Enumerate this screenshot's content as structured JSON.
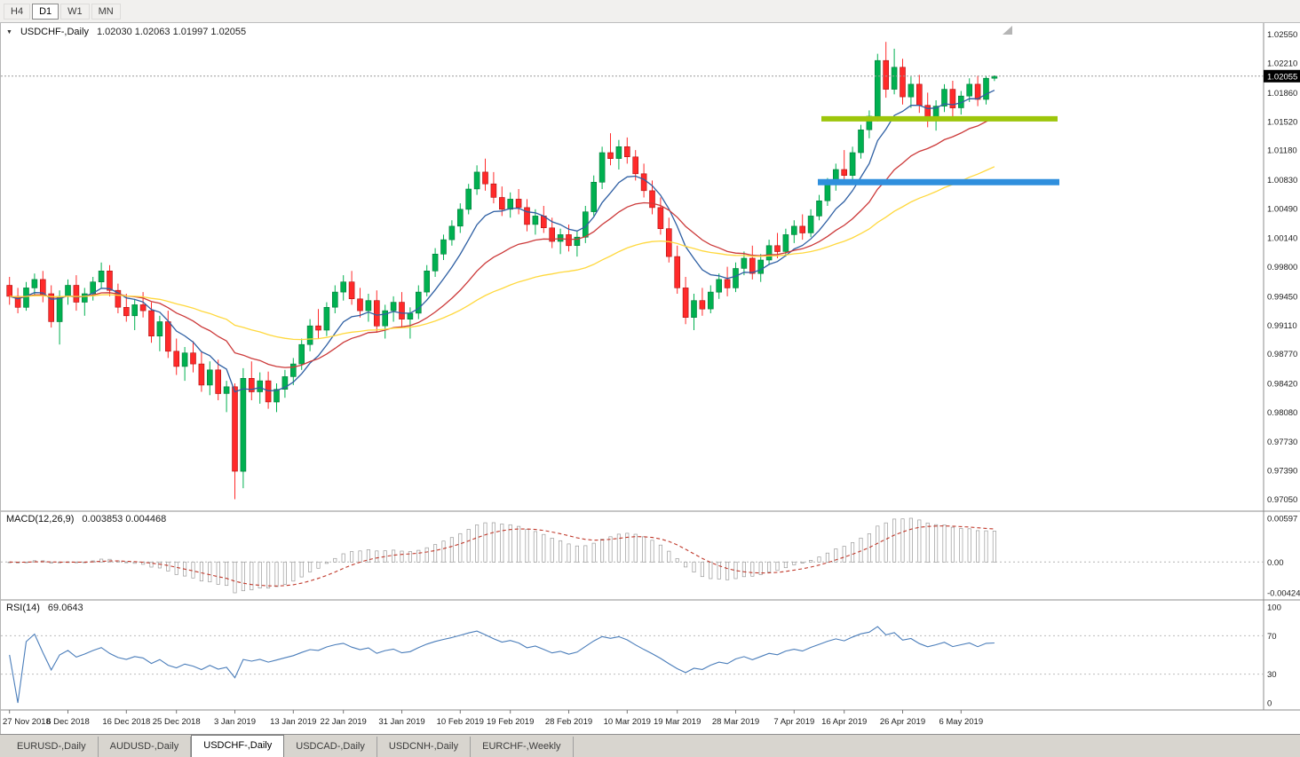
{
  "toolbar": {
    "timeframes": [
      {
        "label": "H4",
        "active": false
      },
      {
        "label": "D1",
        "active": true
      },
      {
        "label": "W1",
        "active": false
      },
      {
        "label": "MN",
        "active": false
      }
    ]
  },
  "icons": {
    "collapse": "▼"
  },
  "chart_data": {
    "type": "candlestick",
    "symbol_title": "USDCHF-,Daily",
    "ohlc_text": "1.02030 1.02063 1.01997 1.02055",
    "last_price": 1.02055,
    "last_price_label": "1.02055",
    "y_min": 0.9695,
    "y_max": 1.0262,
    "up_color": "#00b050",
    "up_border": "#007a38",
    "down_color": "#ff2a2a",
    "down_border": "#ad0f0f",
    "price_axis_ticks": [
      "1.02550",
      "1.02210",
      "1.01860",
      "1.01520",
      "1.01180",
      "1.00830",
      "1.00490",
      "1.00140",
      "0.99800",
      "0.99450",
      "0.99110",
      "0.98770",
      "0.98420",
      "0.98080",
      "0.97730",
      "0.97390",
      "0.97050"
    ],
    "moving_averages": [
      {
        "period": 8,
        "type": "ema",
        "color": "#2e5fa3"
      },
      {
        "period": 21,
        "type": "ema",
        "color": "#cc3939"
      },
      {
        "period": 50,
        "type": "ema",
        "color": "#ffd83d"
      }
    ],
    "trendlines": [
      {
        "name": "resistance-line",
        "price": 1.0155,
        "color": "#9dc60b",
        "x1": 0.65,
        "x2": 0.837,
        "thickness": 6
      },
      {
        "name": "support-line",
        "price": 1.008,
        "color": "#2f8fdd",
        "x1": 0.647,
        "x2": 0.838,
        "thickness": 7
      }
    ],
    "macd": {
      "label": "MACD(12,26,9)",
      "values_text": "0.003853 0.004468",
      "fast": 12,
      "slow": 26,
      "signal": 9,
      "axis_ticks": [
        "0.00597",
        "0.00",
        "-0.004243"
      ],
      "signal_color": "#c0392b",
      "hist_stroke": "#9a9a9a"
    },
    "rsi": {
      "label": "RSI(14)",
      "value_text": "69.0643",
      "period": 14,
      "levels": [
        70,
        30
      ],
      "axis_ticks": [
        "100",
        "70",
        "30",
        "0"
      ],
      "color": "#4a7dba"
    },
    "date_labels": [
      {
        "text": "27 Nov 2018",
        "i": 0
      },
      {
        "text": "6 Dec 2018",
        "i": 7
      },
      {
        "text": "16 Dec 2018",
        "i": 14
      },
      {
        "text": "25 Dec 2018",
        "i": 20
      },
      {
        "text": "3 Jan 2019",
        "i": 27
      },
      {
        "text": "13 Jan 2019",
        "i": 34
      },
      {
        "text": "22 Jan 2019",
        "i": 40
      },
      {
        "text": "31 Jan 2019",
        "i": 47
      },
      {
        "text": "10 Feb 2019",
        "i": 54
      },
      {
        "text": "19 Feb 2019",
        "i": 60
      },
      {
        "text": "28 Feb 2019",
        "i": 67
      },
      {
        "text": "10 Mar 2019",
        "i": 74
      },
      {
        "text": "19 Mar 2019",
        "i": 80
      },
      {
        "text": "28 Mar 2019",
        "i": 87
      },
      {
        "text": "7 Apr 2019",
        "i": 94
      },
      {
        "text": "16 Apr 2019",
        "i": 100
      },
      {
        "text": "26 Apr 2019",
        "i": 107
      },
      {
        "text": "6 May 2019",
        "i": 114
      }
    ],
    "candles_ohlc": [
      [
        0.9958,
        0.9968,
        0.9935,
        0.9945
      ],
      [
        0.9945,
        0.9955,
        0.9925,
        0.9932
      ],
      [
        0.9932,
        0.9962,
        0.9928,
        0.9955
      ],
      [
        0.9955,
        0.9972,
        0.9945,
        0.9965
      ],
      [
        0.9965,
        0.9975,
        0.9938,
        0.9948
      ],
      [
        0.9948,
        0.9958,
        0.9908,
        0.9915
      ],
      [
        0.9915,
        0.9952,
        0.9888,
        0.9945
      ],
      [
        0.9945,
        0.9965,
        0.9935,
        0.9958
      ],
      [
        0.9958,
        0.997,
        0.9928,
        0.9938
      ],
      [
        0.9938,
        0.9955,
        0.9922,
        0.9948
      ],
      [
        0.9948,
        0.9968,
        0.994,
        0.9962
      ],
      [
        0.9962,
        0.9985,
        0.9955,
        0.9975
      ],
      [
        0.9975,
        0.9982,
        0.9945,
        0.9952
      ],
      [
        0.9952,
        0.996,
        0.9925,
        0.9932
      ],
      [
        0.9932,
        0.9948,
        0.9915,
        0.9922
      ],
      [
        0.9922,
        0.9942,
        0.9905,
        0.9935
      ],
      [
        0.9935,
        0.995,
        0.992,
        0.9928
      ],
      [
        0.9928,
        0.9938,
        0.989,
        0.9898
      ],
      [
        0.9898,
        0.9922,
        0.988,
        0.9915
      ],
      [
        0.9915,
        0.9928,
        0.9872,
        0.988
      ],
      [
        0.988,
        0.9895,
        0.9852,
        0.9862
      ],
      [
        0.9862,
        0.9885,
        0.9845,
        0.9878
      ],
      [
        0.9878,
        0.9892,
        0.9855,
        0.9865
      ],
      [
        0.9865,
        0.988,
        0.9832,
        0.984
      ],
      [
        0.984,
        0.9868,
        0.9828,
        0.9858
      ],
      [
        0.9858,
        0.987,
        0.9822,
        0.983
      ],
      [
        0.983,
        0.9845,
        0.9808,
        0.9838
      ],
      [
        0.9838,
        0.9842,
        0.9705,
        0.9738
      ],
      [
        0.9738,
        0.986,
        0.9718,
        0.9848
      ],
      [
        0.9848,
        0.9868,
        0.9822,
        0.9832
      ],
      [
        0.9832,
        0.9855,
        0.9818,
        0.9845
      ],
      [
        0.9845,
        0.9856,
        0.9812,
        0.982
      ],
      [
        0.982,
        0.9842,
        0.9808,
        0.9835
      ],
      [
        0.9835,
        0.9858,
        0.9825,
        0.985
      ],
      [
        0.985,
        0.9872,
        0.984,
        0.9865
      ],
      [
        0.9865,
        0.9895,
        0.9858,
        0.9888
      ],
      [
        0.9888,
        0.9918,
        0.988,
        0.991
      ],
      [
        0.991,
        0.993,
        0.9895,
        0.9905
      ],
      [
        0.9905,
        0.9938,
        0.9898,
        0.9932
      ],
      [
        0.9932,
        0.9958,
        0.9925,
        0.995
      ],
      [
        0.995,
        0.997,
        0.994,
        0.9962
      ],
      [
        0.9962,
        0.9975,
        0.9935,
        0.9942
      ],
      [
        0.9942,
        0.9955,
        0.992,
        0.9928
      ],
      [
        0.9928,
        0.9948,
        0.9915,
        0.994
      ],
      [
        0.994,
        0.9952,
        0.9902,
        0.991
      ],
      [
        0.991,
        0.9935,
        0.9895,
        0.9928
      ],
      [
        0.9928,
        0.9945,
        0.9915,
        0.9938
      ],
      [
        0.9938,
        0.995,
        0.9908,
        0.9918
      ],
      [
        0.9918,
        0.9932,
        0.9895,
        0.9925
      ],
      [
        0.9925,
        0.9958,
        0.9918,
        0.995
      ],
      [
        0.995,
        0.9982,
        0.9945,
        0.9975
      ],
      [
        0.9975,
        1.0002,
        0.9968,
        0.9995
      ],
      [
        0.9995,
        1.0018,
        0.9988,
        1.0012
      ],
      [
        1.0012,
        1.0035,
        1.0005,
        1.0028
      ],
      [
        1.0028,
        1.0055,
        1.002,
        1.0048
      ],
      [
        1.0048,
        1.0078,
        1.0042,
        1.0072
      ],
      [
        1.0072,
        1.01,
        1.0065,
        1.0092
      ],
      [
        1.0092,
        1.0108,
        1.007,
        1.0078
      ],
      [
        1.0078,
        1.0092,
        1.0055,
        1.0062
      ],
      [
        1.0062,
        1.0075,
        1.004,
        1.0048
      ],
      [
        1.0048,
        1.0068,
        1.0038,
        1.006
      ],
      [
        1.006,
        1.0072,
        1.0042,
        1.005
      ],
      [
        1.005,
        1.006,
        1.0022,
        1.003
      ],
      [
        1.003,
        1.0048,
        1.0018,
        1.004
      ],
      [
        1.004,
        1.0052,
        1.002,
        1.0026
      ],
      [
        1.0026,
        1.0038,
        1.0002,
        1.001
      ],
      [
        1.001,
        1.0025,
        0.9995,
        1.0018
      ],
      [
        1.0018,
        1.003,
        0.9998,
        1.0005
      ],
      [
        1.0005,
        1.0022,
        0.9992,
        1.0015
      ],
      [
        1.0015,
        1.0052,
        1.0008,
        1.0045
      ],
      [
        1.0045,
        1.0088,
        1.004,
        1.008
      ],
      [
        1.008,
        1.0122,
        1.0072,
        1.0115
      ],
      [
        1.0115,
        1.0138,
        1.01,
        1.0108
      ],
      [
        1.0108,
        1.013,
        1.0095,
        1.0122
      ],
      [
        1.0122,
        1.0133,
        1.0102,
        1.011
      ],
      [
        1.011,
        1.0118,
        1.0082,
        1.009
      ],
      [
        1.009,
        1.0102,
        1.0062,
        1.007
      ],
      [
        1.007,
        1.0082,
        1.0042,
        1.005
      ],
      [
        1.005,
        1.0062,
        1.0018,
        1.0025
      ],
      [
        1.0025,
        1.0038,
        0.9985,
        0.9992
      ],
      [
        0.9992,
        1.0005,
        0.9948,
        0.9955
      ],
      [
        0.9955,
        0.9968,
        0.9912,
        0.992
      ],
      [
        0.992,
        0.9948,
        0.9905,
        0.994
      ],
      [
        0.994,
        0.9955,
        0.9922,
        0.993
      ],
      [
        0.993,
        0.9958,
        0.9925,
        0.995
      ],
      [
        0.995,
        0.9972,
        0.9942,
        0.9965
      ],
      [
        0.9965,
        0.998,
        0.9945,
        0.9955
      ],
      [
        0.9955,
        0.9985,
        0.995,
        0.9978
      ],
      [
        0.9978,
        0.9998,
        0.997,
        0.999
      ],
      [
        0.999,
        1.0005,
        0.9965,
        0.9972
      ],
      [
        0.9972,
        0.9995,
        0.9962,
        0.9988
      ],
      [
        0.9988,
        1.0012,
        0.9982,
        1.0005
      ],
      [
        1.0005,
        1.002,
        0.999,
        0.9998
      ],
      [
        0.9998,
        1.0025,
        0.9992,
        1.0018
      ],
      [
        1.0018,
        1.0035,
        1.0008,
        1.0028
      ],
      [
        1.0028,
        1.0042,
        1.0012,
        1.002
      ],
      [
        1.002,
        1.0048,
        1.0015,
        1.004
      ],
      [
        1.004,
        1.0065,
        1.0035,
        1.0058
      ],
      [
        1.0058,
        1.0085,
        1.0052,
        1.0078
      ],
      [
        1.0078,
        1.0102,
        1.007,
        1.0095
      ],
      [
        1.0095,
        1.0118,
        1.008,
        1.0088
      ],
      [
        1.0088,
        1.0122,
        1.0082,
        1.0115
      ],
      [
        1.0115,
        1.0148,
        1.0108,
        1.0142
      ],
      [
        1.0142,
        1.0165,
        1.0132,
        1.0158
      ],
      [
        1.0158,
        1.0232,
        1.0152,
        1.0224
      ],
      [
        1.0224,
        1.0246,
        1.018,
        1.019
      ],
      [
        1.019,
        1.0238,
        1.0184,
        1.0216
      ],
      [
        1.0216,
        1.0226,
        1.0172,
        1.0181
      ],
      [
        1.0181,
        1.0205,
        1.0168,
        1.0196
      ],
      [
        1.0196,
        1.0207,
        1.0162,
        1.0171
      ],
      [
        1.0171,
        1.0186,
        1.0145,
        1.0154
      ],
      [
        1.0154,
        1.0177,
        1.0141,
        1.017
      ],
      [
        1.017,
        1.0196,
        1.0163,
        1.019
      ],
      [
        1.019,
        1.02,
        1.0158,
        1.0168
      ],
      [
        1.0168,
        1.0188,
        1.016,
        1.0182
      ],
      [
        1.0182,
        1.0203,
        1.0175,
        1.0196
      ],
      [
        1.0196,
        1.0206,
        1.017,
        1.0178
      ],
      [
        1.0178,
        1.0206,
        1.0172,
        1.0203
      ],
      [
        1.0203,
        1.02063,
        1.01997,
        1.02055
      ]
    ]
  },
  "bottom_tabs": [
    {
      "label": "EURUSD-,Daily",
      "active": false
    },
    {
      "label": "AUDUSD-,Daily",
      "active": false
    },
    {
      "label": "USDCHF-,Daily",
      "active": true
    },
    {
      "label": "USDCAD-,Daily",
      "active": false
    },
    {
      "label": "USDCNH-,Daily",
      "active": false
    },
    {
      "label": "EURCHF-,Weekly",
      "active": false
    }
  ]
}
